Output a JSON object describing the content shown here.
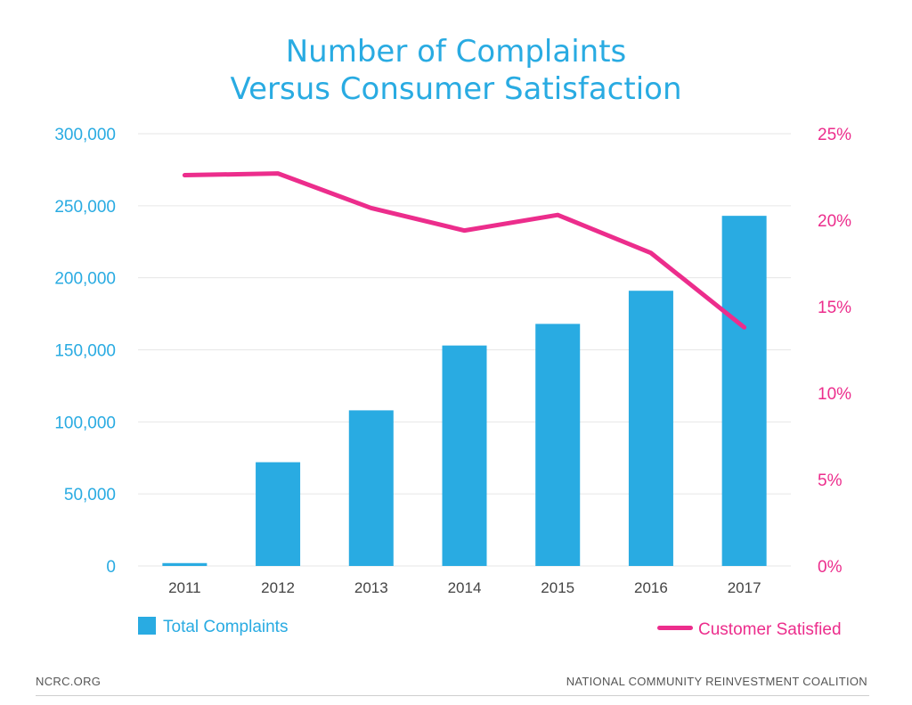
{
  "footer": {
    "left": "NCRC.ORG",
    "right": "NATIONAL COMMUNITY REINVESTMENT COALITION"
  },
  "colors": {
    "title": "#29abe2",
    "bars": "#29abe2",
    "line": "#ec2d8c",
    "grid": "#e6e6e6"
  },
  "chart_data": {
    "type": "bar",
    "title": [
      "Number of Complaints",
      "Versus Consumer Satisfaction"
    ],
    "categories": [
      "2011",
      "2012",
      "2013",
      "2014",
      "2015",
      "2016",
      "2017"
    ],
    "series": [
      {
        "name": "Total Complaints",
        "type": "bar",
        "axis": "left",
        "values": [
          2000,
          72000,
          108000,
          153000,
          168000,
          191000,
          243000
        ]
      },
      {
        "name": "Customer Satisfied",
        "type": "line",
        "axis": "right",
        "values": [
          22.6,
          22.7,
          20.7,
          19.4,
          20.3,
          18.1,
          13.8
        ]
      }
    ],
    "yleft": {
      "ylim": [
        0,
        300000
      ],
      "ticks": [
        "0",
        "50,000",
        "100,000",
        "150,000",
        "200,000",
        "250,000",
        "300,000"
      ]
    },
    "yright": {
      "ylim": [
        0,
        25
      ],
      "ticks": [
        "0%",
        "5%",
        "10%",
        "15%",
        "20%",
        "25%"
      ]
    },
    "grid": true,
    "legend": [
      "bottom-left",
      "bottom-right"
    ]
  }
}
